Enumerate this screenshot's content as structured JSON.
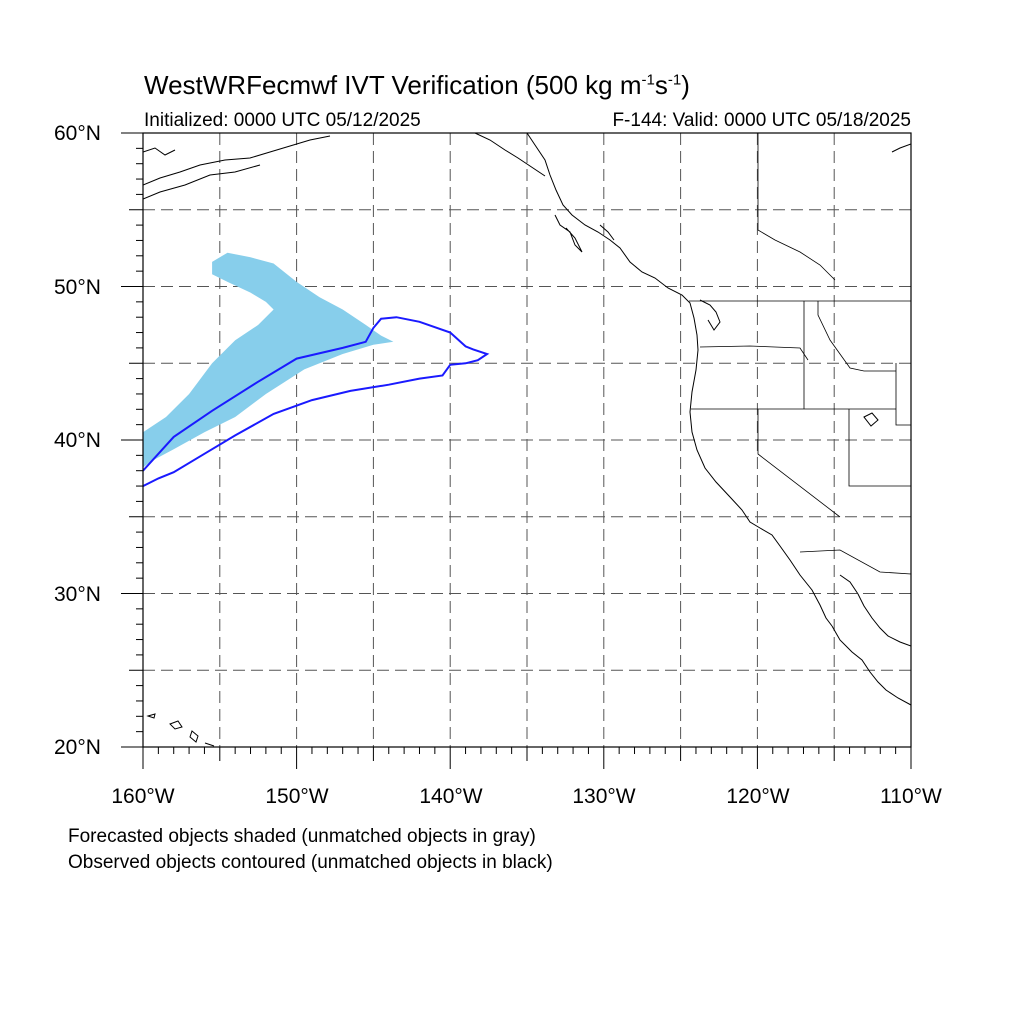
{
  "header": {
    "title_main": "WestWRFecmwf IVT Verification (500 kg m",
    "title_exp1": "-1",
    "title_mid": "s",
    "title_exp2": "-1",
    "title_end": ")",
    "initialized": "Initialized: 0000 UTC 05/12/2025",
    "valid": "F-144: Valid: 0000 UTC 05/18/2025"
  },
  "axes": {
    "lat_labels": [
      "60°N",
      "50°N",
      "40°N",
      "30°N",
      "20°N"
    ],
    "lon_labels": [
      "160°W",
      "150°W",
      "140°W",
      "130°W",
      "120°W",
      "110°W"
    ]
  },
  "footer": {
    "line1": "Forecasted objects shaded (unmatched objects in gray)",
    "line2": "Observed objects contoured (unmatched objects in black)"
  },
  "map": {
    "extent": {
      "lon": [
        -160,
        -110
      ],
      "lat": [
        20,
        60
      ]
    },
    "grid": "dashed",
    "grid_spacing_deg": 5,
    "colors": {
      "forecast_fill": "#87CEEB",
      "observed_contour": "#1a1aff",
      "coastline": "#000000",
      "grid": "#555555"
    },
    "forecast_object": {
      "shape_lonlat": [
        [
          -160.0,
          40.5
        ],
        [
          -158.5,
          41.5
        ],
        [
          -157.0,
          43.0
        ],
        [
          -155.5,
          45.0
        ],
        [
          -154.0,
          46.5
        ],
        [
          -152.5,
          47.5
        ],
        [
          -151.5,
          48.5
        ],
        [
          -152.0,
          49.0
        ],
        [
          -153.0,
          49.6
        ],
        [
          -154.5,
          50.3
        ],
        [
          -155.5,
          50.8
        ],
        [
          -155.5,
          51.6
        ],
        [
          -154.5,
          52.2
        ],
        [
          -153.0,
          51.9
        ],
        [
          -151.5,
          51.5
        ],
        [
          -150.0,
          50.3
        ],
        [
          -148.5,
          49.3
        ],
        [
          -147.0,
          48.5
        ],
        [
          -145.5,
          47.5
        ],
        [
          -144.5,
          46.8
        ],
        [
          -143.7,
          46.4
        ],
        [
          -145.0,
          46.2
        ],
        [
          -147.0,
          45.6
        ],
        [
          -149.5,
          44.6
        ],
        [
          -152.0,
          43.0
        ],
        [
          -154.0,
          41.5
        ],
        [
          -156.0,
          40.5
        ],
        [
          -158.0,
          39.4
        ],
        [
          -159.5,
          38.6
        ],
        [
          -160.0,
          38.2
        ]
      ]
    },
    "observed_object": {
      "shape_lonlat": [
        [
          -160.0,
          38.0
        ],
        [
          -158.0,
          40.2
        ],
        [
          -155.5,
          41.9
        ],
        [
          -152.5,
          43.8
        ],
        [
          -150.0,
          45.3
        ],
        [
          -147.0,
          46.0
        ],
        [
          -145.5,
          46.4
        ],
        [
          -145.0,
          47.3
        ],
        [
          -144.5,
          47.9
        ],
        [
          -143.5,
          48.0
        ],
        [
          -142.0,
          47.7
        ],
        [
          -140.0,
          47.0
        ],
        [
          -139.0,
          46.1
        ],
        [
          -138.5,
          45.9
        ],
        [
          -137.6,
          45.6
        ],
        [
          -138.2,
          45.2
        ],
        [
          -139.0,
          45.0
        ],
        [
          -140.0,
          44.9
        ],
        [
          -140.5,
          44.2
        ],
        [
          -142.0,
          44.0
        ],
        [
          -144.0,
          43.6
        ],
        [
          -146.5,
          43.2
        ],
        [
          -149.0,
          42.6
        ],
        [
          -151.5,
          41.7
        ],
        [
          -154.0,
          40.3
        ],
        [
          -156.0,
          39.1
        ],
        [
          -158.0,
          37.9
        ],
        [
          -159.0,
          37.5
        ],
        [
          -160.0,
          37.0
        ]
      ]
    }
  }
}
